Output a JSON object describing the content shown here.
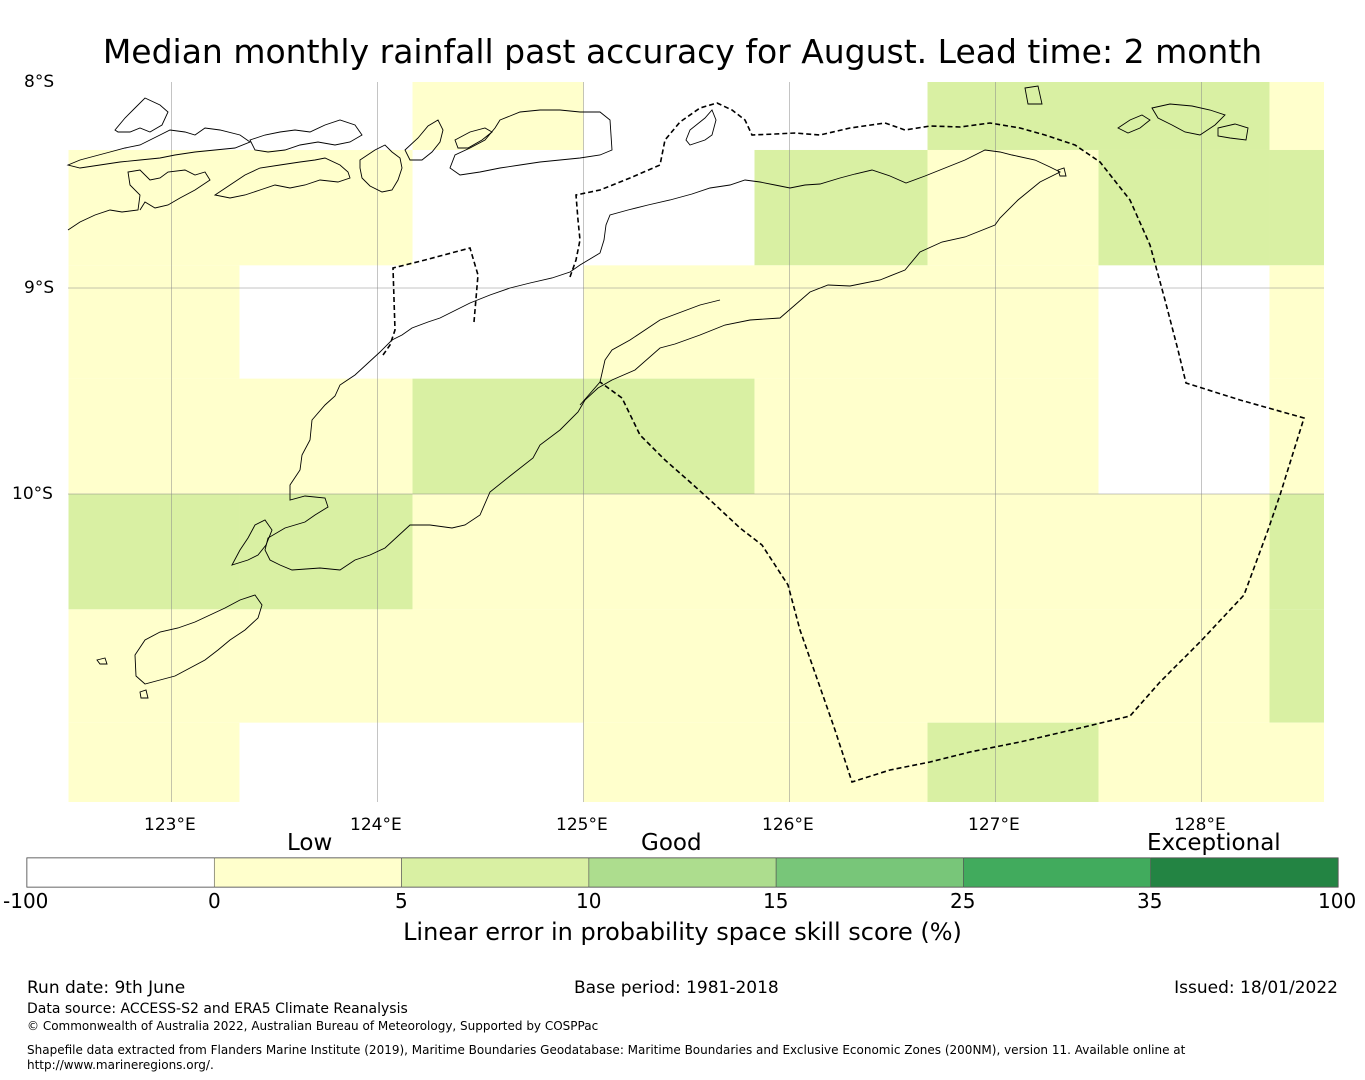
{
  "title": "Median monthly rainfall past accuracy for August. Lead time: 2 month",
  "map": {
    "lon_ticks": [
      "123°E",
      "124°E",
      "125°E",
      "126°E",
      "127°E",
      "128°E"
    ],
    "lat_ticks": [
      "8°S",
      "9°S",
      "10°S"
    ],
    "extent": {
      "lon": [
        122.5,
        128.6
      ],
      "lat": [
        -11.5,
        -8.0
      ]
    },
    "grid_cells": [
      {
        "lon": [
          122.5,
          123.33
        ],
        "lat": [
          -8.33,
          -8.89
        ],
        "class": "low"
      },
      {
        "lon": [
          123.33,
          124.17
        ],
        "lat": [
          -8.33,
          -8.89
        ],
        "class": "low"
      },
      {
        "lon": [
          124.17,
          125.0
        ],
        "lat": [
          -8.0,
          -8.33
        ],
        "class": "low"
      },
      {
        "lon": [
          125.83,
          126.67
        ],
        "lat": [
          -8.33,
          -8.89
        ],
        "class": "fair"
      },
      {
        "lon": [
          126.67,
          127.5
        ],
        "lat": [
          -8.0,
          -8.33
        ],
        "class": "fair"
      },
      {
        "lon": [
          126.67,
          127.5
        ],
        "lat": [
          -8.33,
          -8.89
        ],
        "class": "low"
      },
      {
        "lon": [
          127.5,
          128.33
        ],
        "lat": [
          -8.0,
          -8.33
        ],
        "class": "fair"
      },
      {
        "lon": [
          127.5,
          128.33
        ],
        "lat": [
          -8.33,
          -8.89
        ],
        "class": "fair"
      },
      {
        "lon": [
          128.33,
          128.6
        ],
        "lat": [
          -8.0,
          -8.33
        ],
        "class": "low"
      },
      {
        "lon": [
          128.33,
          128.6
        ],
        "lat": [
          -8.33,
          -8.89
        ],
        "class": "fair"
      },
      {
        "lon": [
          122.5,
          123.33
        ],
        "lat": [
          -8.89,
          -9.44
        ],
        "class": "low"
      },
      {
        "lon": [
          125.0,
          125.83
        ],
        "lat": [
          -8.89,
          -9.44
        ],
        "class": "low"
      },
      {
        "lon": [
          125.83,
          126.67
        ],
        "lat": [
          -8.89,
          -9.44
        ],
        "class": "low"
      },
      {
        "lon": [
          126.67,
          127.5
        ],
        "lat": [
          -8.89,
          -9.44
        ],
        "class": "low"
      },
      {
        "lon": [
          128.33,
          128.6
        ],
        "lat": [
          -8.89,
          -9.44
        ],
        "class": "low"
      },
      {
        "lon": [
          122.5,
          123.33
        ],
        "lat": [
          -9.44,
          -10.0
        ],
        "class": "low"
      },
      {
        "lon": [
          123.33,
          124.17
        ],
        "lat": [
          -9.44,
          -10.0
        ],
        "class": "low"
      },
      {
        "lon": [
          124.17,
          125.0
        ],
        "lat": [
          -9.44,
          -10.0
        ],
        "class": "fair"
      },
      {
        "lon": [
          125.0,
          125.83
        ],
        "lat": [
          -9.44,
          -10.0
        ],
        "class": "fair"
      },
      {
        "lon": [
          125.83,
          126.67
        ],
        "lat": [
          -9.44,
          -10.0
        ],
        "class": "low"
      },
      {
        "lon": [
          126.67,
          127.5
        ],
        "lat": [
          -9.44,
          -10.0
        ],
        "class": "low"
      },
      {
        "lon": [
          128.33,
          128.6
        ],
        "lat": [
          -9.44,
          -10.0
        ],
        "class": "low"
      },
      {
        "lon": [
          122.5,
          123.33
        ],
        "lat": [
          -10.0,
          -10.56
        ],
        "class": "fair"
      },
      {
        "lon": [
          123.33,
          124.17
        ],
        "lat": [
          -10.0,
          -10.56
        ],
        "class": "fair"
      },
      {
        "lon": [
          124.17,
          125.0
        ],
        "lat": [
          -10.0,
          -10.56
        ],
        "class": "low"
      },
      {
        "lon": [
          125.0,
          125.83
        ],
        "lat": [
          -10.0,
          -10.56
        ],
        "class": "low"
      },
      {
        "lon": [
          125.83,
          126.67
        ],
        "lat": [
          -10.0,
          -10.56
        ],
        "class": "low"
      },
      {
        "lon": [
          126.67,
          127.5
        ],
        "lat": [
          -10.0,
          -10.56
        ],
        "class": "low"
      },
      {
        "lon": [
          127.5,
          128.33
        ],
        "lat": [
          -10.0,
          -10.56
        ],
        "class": "low"
      },
      {
        "lon": [
          128.33,
          128.6
        ],
        "lat": [
          -10.0,
          -10.56
        ],
        "class": "fair"
      },
      {
        "lon": [
          122.5,
          123.33
        ],
        "lat": [
          -10.56,
          -11.11
        ],
        "class": "low"
      },
      {
        "lon": [
          123.33,
          124.17
        ],
        "lat": [
          -10.56,
          -11.11
        ],
        "class": "low"
      },
      {
        "lon": [
          124.17,
          125.0
        ],
        "lat": [
          -10.56,
          -11.11
        ],
        "class": "low"
      },
      {
        "lon": [
          125.0,
          125.83
        ],
        "lat": [
          -10.56,
          -11.11
        ],
        "class": "low"
      },
      {
        "lon": [
          125.83,
          126.67
        ],
        "lat": [
          -10.56,
          -11.11
        ],
        "class": "low"
      },
      {
        "lon": [
          126.67,
          127.5
        ],
        "lat": [
          -10.56,
          -11.11
        ],
        "class": "low"
      },
      {
        "lon": [
          127.5,
          128.33
        ],
        "lat": [
          -10.56,
          -11.11
        ],
        "class": "low"
      },
      {
        "lon": [
          128.33,
          128.6
        ],
        "lat": [
          -10.56,
          -11.11
        ],
        "class": "fair"
      },
      {
        "lon": [
          122.5,
          123.33
        ],
        "lat": [
          -11.11,
          -11.5
        ],
        "class": "low"
      },
      {
        "lon": [
          125.0,
          125.83
        ],
        "lat": [
          -11.11,
          -11.5
        ],
        "class": "low"
      },
      {
        "lon": [
          125.83,
          126.67
        ],
        "lat": [
          -11.11,
          -11.5
        ],
        "class": "low"
      },
      {
        "lon": [
          126.67,
          127.5
        ],
        "lat": [
          -11.11,
          -11.5
        ],
        "class": "fair"
      },
      {
        "lon": [
          127.5,
          128.33
        ],
        "lat": [
          -11.11,
          -11.5
        ],
        "class": "low"
      },
      {
        "lon": [
          128.33,
          128.6
        ],
        "lat": [
          -11.11,
          -11.5
        ],
        "class": "low"
      }
    ]
  },
  "colorbar": {
    "category_labels": [
      "Low",
      "Good",
      "Exceptional"
    ],
    "tick_labels": [
      "-100",
      "0",
      "5",
      "10",
      "15",
      "25",
      "35",
      "100"
    ],
    "colors": [
      "#ffffff",
      "#ffffcc",
      "#d9f0a3",
      "#addd8e",
      "#78c679",
      "#41ab5d",
      "#238443"
    ],
    "title": "Linear error in probability space skill score (%)"
  },
  "cell_colors": {
    "low": "#ffffcc",
    "fair": "#d9f0a3"
  },
  "footer": {
    "run_date": "Run date: 9th June",
    "base_period": "Base period: 1981-2018",
    "issued": "Issued: 18/01/2022",
    "data_source": "Data source: ACCESS-S2 and ERA5 Climate Reanalysis",
    "copyright": "© Commonwealth of Australia 2022, Australian Bureau of Meteorology, Supported by COSPPac",
    "shapefile_line1": "Shapefile data extracted from Flanders Marine Institute (2019), Maritime Boundaries Geodatabase: Maritime Boundaries and Exclusive Economic Zones (200NM), version 11. Available online at",
    "shapefile_line2": "http://www.marineregions.org/."
  }
}
